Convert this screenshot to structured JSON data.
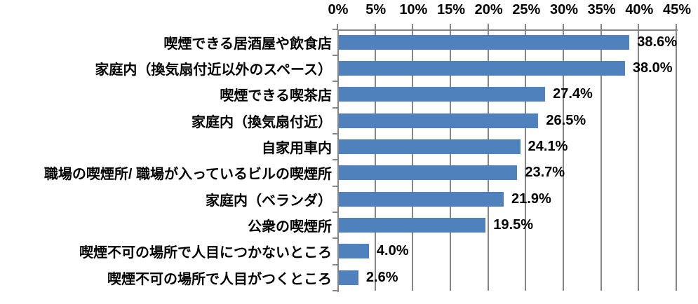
{
  "chart_data": {
    "type": "bar",
    "orientation": "horizontal",
    "title": "",
    "categories": [
      "喫煙できる居酒屋や飲食店",
      "家庭内（換気扇付近以外のスペース）",
      "喫煙できる喫茶店",
      "家庭内（換気扇付近）",
      "自家用車内",
      "職場の喫煙所/ 職場が入っているビルの喫煙所",
      "家庭内（ベランダ）",
      "公衆の喫煙所",
      "喫煙不可の場所で人目につかないところ",
      "喫煙不可の場所で人目がつくところ"
    ],
    "values": [
      38.6,
      38.0,
      27.4,
      26.5,
      24.1,
      23.7,
      21.9,
      19.5,
      4.0,
      2.6
    ],
    "value_labels": [
      "38.6%",
      "38.0%",
      "27.4%",
      "26.5%",
      "24.1%",
      "23.7%",
      "21.9%",
      "19.5%",
      "4.0%",
      "2.6%"
    ],
    "x_axis": {
      "position": "top",
      "min": 0,
      "max": 45,
      "tick_step": 5,
      "ticks": [
        "0%",
        "5%",
        "10%",
        "15%",
        "20%",
        "25%",
        "30%",
        "35%",
        "40%",
        "45%"
      ]
    },
    "grid": true,
    "legend": false,
    "colors": {
      "bar": "#4F81BD",
      "gridline": "#868686",
      "text": "#000000",
      "background": "#FFFFFF"
    }
  }
}
